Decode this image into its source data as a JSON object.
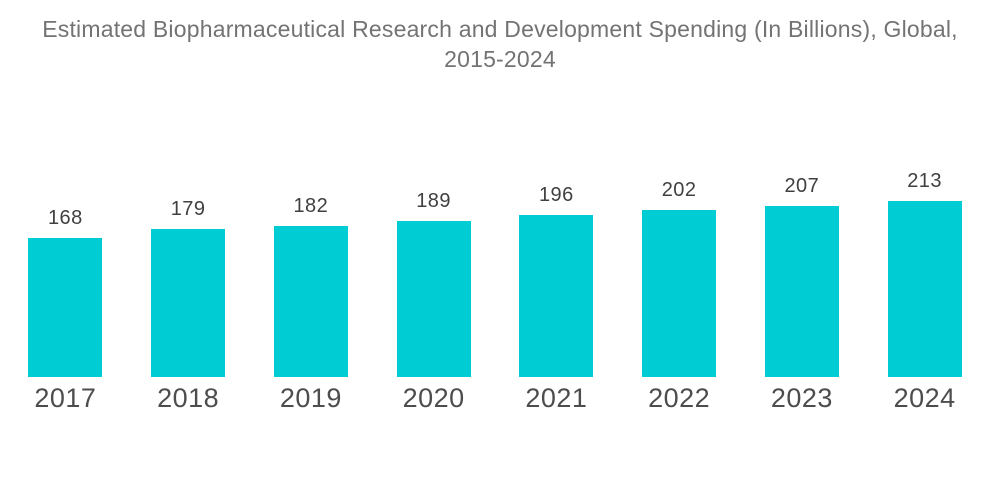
{
  "title": {
    "line1": "Estimated Biopharmaceutical Research and Development Spending (In Billions), Global,",
    "line2": "2015-2024"
  },
  "chart_data": {
    "type": "bar",
    "title": "Estimated Biopharmaceutical Research and Development Spending (In Billions), Global, 2015-2024",
    "categories": [
      "2017",
      "2018",
      "2019",
      "2020",
      "2021",
      "2022",
      "2023",
      "2024"
    ],
    "values": [
      168,
      179,
      182,
      189,
      196,
      202,
      207,
      213
    ],
    "xlabel": "",
    "ylabel": "",
    "ylim": [
      0,
      213
    ],
    "grid": false,
    "legend": false,
    "data_labels": true,
    "axes_visible": false,
    "colors": {
      "bar": "#00CDD3",
      "title_text": "#737373",
      "value_label": "#404040",
      "axis_label": "#4D4D4D",
      "background": "#FFFFFF"
    }
  }
}
